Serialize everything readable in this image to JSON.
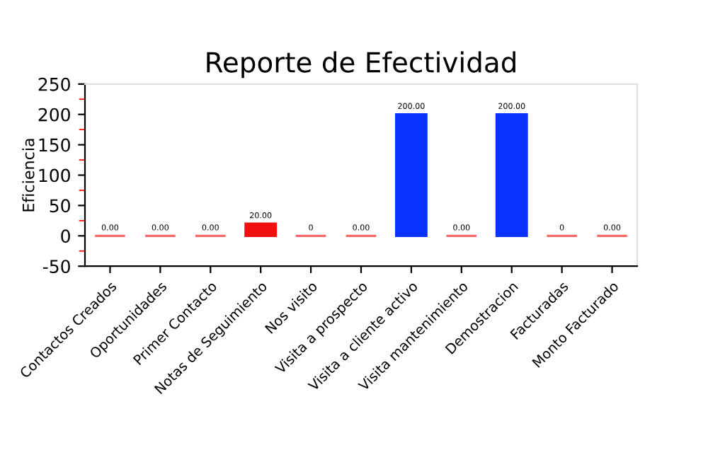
{
  "chart_data": {
    "type": "bar",
    "title": "Reporte de Efectividad",
    "ylabel": "Eficiencia",
    "categories": [
      "Contactos Creados",
      "Oportunidades",
      "Primer Contacto",
      "Notas de Seguimiento",
      "Nos visito",
      "Visita a prospecto",
      "Visita a cliente activo",
      "Visita mantenimiento",
      "Demostracion",
      "Facturadas",
      "Monto Facturado"
    ],
    "values": [
      0,
      0,
      0,
      20,
      0,
      0,
      200,
      0,
      200,
      0,
      0
    ],
    "colors": [
      "#ff6666",
      "#ff6666",
      "#ff6666",
      "#f01010",
      "#ff6666",
      "#ff6666",
      "#0a32ff",
      "#ff6666",
      "#0a32ff",
      "#ff6666",
      "#ff6666"
    ],
    "value_labels": [
      "0.00",
      "0.00",
      "0.00",
      "20.00",
      "0",
      "0.00",
      "200.00",
      "0.00",
      "200.00",
      "0",
      "0.00"
    ],
    "ylim": [
      -50,
      250
    ],
    "yticks": [
      -50,
      0,
      50,
      100,
      150,
      200,
      250
    ],
    "grid": false,
    "legend": false
  }
}
